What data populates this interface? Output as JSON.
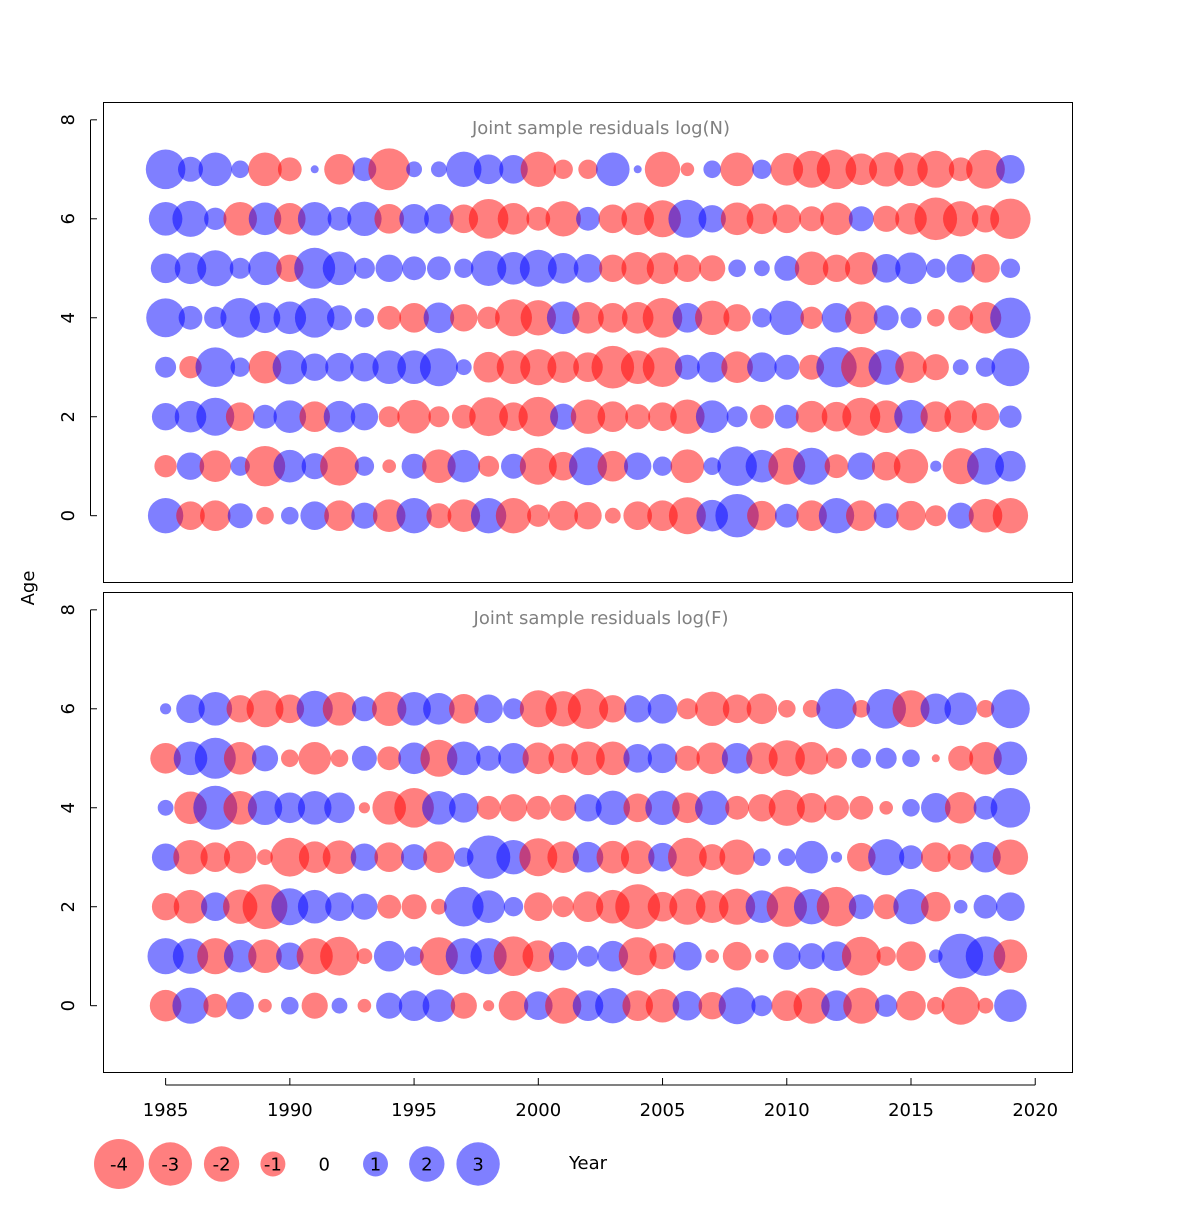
{
  "chart_data": [
    {
      "type": "bubble",
      "title": "Joint sample residuals log(N)",
      "xlabel": "",
      "ylabel": "Age",
      "xlim": [
        1982.5,
        2021.5
      ],
      "ylim": [
        -1.35,
        8.35
      ],
      "yticks": [
        0,
        2,
        4,
        6,
        8
      ],
      "x": [
        1985,
        1986,
        1987,
        1988,
        1989,
        1990,
        1991,
        1992,
        1993,
        1994,
        1995,
        1996,
        1997,
        1998,
        1999,
        2000,
        2001,
        2002,
        2003,
        2004,
        2005,
        2006,
        2007,
        2008,
        2009,
        2010,
        2011,
        2012,
        2013,
        2014,
        2015,
        2016,
        2017,
        2018,
        2019
      ],
      "ages": [
        0,
        1,
        2,
        3,
        4,
        5,
        6,
        7
      ],
      "residuals": [
        [
          2.0,
          -1.3,
          -1.5,
          1.0,
          -0.5,
          0.5,
          1.3,
          -1.5,
          1.1,
          -1.7,
          2.0,
          -1.0,
          -1.7,
          2.0,
          -2.0,
          -0.8,
          -1.4,
          -1.2,
          -0.4,
          -1.3,
          -1.5,
          -2.2,
          1.6,
          3.0,
          -1.4,
          0.9,
          -1.5,
          2.0,
          -1.5,
          1.0,
          -1.4,
          -0.7,
          1.1,
          -1.8,
          -2.0
        ],
        [
          -0.8,
          1.2,
          -1.6,
          0.6,
          -2.6,
          1.7,
          1.1,
          -2.4,
          0.6,
          -0.3,
          1.0,
          -1.8,
          1.7,
          -0.7,
          1.0,
          -2.2,
          -1.3,
          2.3,
          -1.5,
          1.2,
          0.6,
          -1.8,
          0.5,
          2.5,
          1.7,
          -2.2,
          2.2,
          -0.9,
          1.2,
          -1.3,
          -1.9,
          0.2,
          -2.1,
          2.2,
          1.5
        ],
        [
          1.2,
          1.6,
          2.3,
          -1.3,
          0.9,
          1.7,
          -1.5,
          1.6,
          1.2,
          -0.7,
          -1.8,
          -0.7,
          -0.9,
          -2.4,
          -1.3,
          -2.5,
          1.1,
          -1.9,
          -1.5,
          -1.0,
          -1.3,
          -1.9,
          1.7,
          0.7,
          -0.9,
          0.9,
          -1.6,
          -1.4,
          -2.3,
          -1.7,
          1.8,
          -1.5,
          -1.7,
          -1.2,
          0.8
        ],
        [
          0.7,
          -0.8,
          2.5,
          0.6,
          -1.7,
          1.9,
          1.2,
          1.3,
          1.3,
          1.8,
          1.8,
          2.3,
          0.4,
          -1.5,
          -1.8,
          -2.1,
          -1.6,
          -1.4,
          -2.9,
          -1.8,
          -2.5,
          1.0,
          1.5,
          -1.6,
          1.4,
          1.0,
          -1.0,
          2.6,
          -2.6,
          2.0,
          -1.6,
          -1.1,
          0.4,
          0.6,
          2.3
        ],
        [
          2.4,
          0.9,
          0.8,
          2.5,
          1.5,
          1.7,
          2.5,
          1.0,
          0.6,
          -0.9,
          -1.4,
          1.5,
          -1.2,
          -0.8,
          -2.2,
          -2.0,
          1.7,
          -1.6,
          -1.4,
          -1.6,
          -2.5,
          1.4,
          -1.9,
          -1.2,
          0.6,
          1.9,
          -0.8,
          1.4,
          -1.7,
          1.0,
          0.7,
          -0.5,
          -1.0,
          -1.6,
          2.6
        ],
        [
          1.4,
          1.6,
          2.1,
          0.7,
          1.8,
          -1.2,
          2.7,
          1.8,
          0.7,
          1.2,
          0.9,
          0.9,
          0.6,
          2.0,
          1.7,
          2.2,
          1.5,
          1.3,
          -1.2,
          -1.7,
          -1.6,
          -1.2,
          -1.1,
          0.5,
          0.4,
          1.0,
          -1.8,
          -1.2,
          -1.7,
          1.3,
          1.6,
          0.6,
          1.3,
          -1.3,
          0.6
        ],
        [
          1.8,
          2.1,
          0.8,
          -1.8,
          1.7,
          -1.6,
          1.8,
          0.9,
          1.9,
          -1.4,
          1.4,
          1.4,
          -1.3,
          -2.5,
          -1.6,
          -0.9,
          -2.0,
          0.9,
          -1.3,
          -1.7,
          -2.2,
          2.3,
          1.2,
          -1.7,
          -1.5,
          -1.3,
          -1.0,
          -1.7,
          1.0,
          -1.1,
          -1.6,
          -2.9,
          -2.0,
          -1.2,
          -2.6
        ],
        [
          2.5,
          1.0,
          1.8,
          0.5,
          -1.8,
          -0.9,
          0.1,
          -1.5,
          0.9,
          -2.8,
          0.4,
          0.4,
          2.0,
          1.4,
          1.3,
          -2.0,
          -0.6,
          -0.6,
          1.8,
          0.1,
          -2.0,
          -0.3,
          0.5,
          -1.8,
          0.6,
          -1.7,
          -2.2,
          -2.5,
          -1.6,
          -1.9,
          -1.8,
          -2.2,
          -0.9,
          -2.4,
          1.3
        ]
      ]
    },
    {
      "type": "bubble",
      "title": "Joint sample residuals log(F)",
      "xlabel": "Year",
      "ylabel": "Age",
      "xlim": [
        1982.5,
        2021.5
      ],
      "ylim": [
        -1.35,
        8.35
      ],
      "yticks": [
        0,
        2,
        4,
        6,
        8
      ],
      "xticks": [
        1985,
        1990,
        1995,
        2000,
        2005,
        2010,
        2015,
        2020
      ],
      "x": [
        1985,
        1986,
        1987,
        1988,
        1989,
        1990,
        1991,
        1992,
        1993,
        1994,
        1995,
        1996,
        1997,
        1998,
        1999,
        2000,
        2001,
        2002,
        2003,
        2004,
        2005,
        2006,
        2007,
        2008,
        2009,
        2010,
        2011,
        2012,
        2013,
        2014,
        2015,
        2016,
        2017,
        2018,
        2019
      ],
      "ages": [
        0,
        1,
        2,
        3,
        4,
        5,
        6
      ],
      "residuals": [
        [
          -1.6,
          2.1,
          -0.9,
          1.2,
          -0.3,
          0.5,
          -1.1,
          0.4,
          -0.3,
          1.1,
          1.5,
          1.7,
          -1.1,
          -0.2,
          -1.4,
          1.3,
          -2.1,
          1.5,
          2.0,
          -1.5,
          -1.8,
          1.4,
          -1.2,
          2.2,
          0.7,
          -1.5,
          -2.1,
          1.5,
          -2.1,
          0.8,
          -1.4,
          -0.5,
          -2.3,
          -0.4,
          1.7
        ],
        [
          2.1,
          2.0,
          -2.1,
          1.7,
          -1.8,
          1.2,
          -2.1,
          -2.4,
          -0.4,
          1.5,
          0.6,
          -2.3,
          2.1,
          2.1,
          -2.5,
          -1.6,
          1.3,
          0.7,
          1.5,
          -2.3,
          -1.1,
          1.3,
          -0.3,
          -1.3,
          -0.3,
          1.2,
          1.1,
          1.4,
          -2.4,
          -0.6,
          -1.4,
          0.3,
          3.2,
          2.5,
          -1.8
        ],
        [
          -1.2,
          -1.8,
          1.3,
          -1.9,
          -3.2,
          2.2,
          1.8,
          1.3,
          1.1,
          -0.9,
          -1.0,
          -0.4,
          2.5,
          1.7,
          0.6,
          -1.3,
          -0.7,
          -1.5,
          -1.8,
          -3.2,
          -1.4,
          -2.1,
          -1.7,
          -2.1,
          1.7,
          -2.6,
          2.0,
          -2.5,
          1.0,
          -1.0,
          2.0,
          -1.4,
          0.3,
          0.9,
          1.3
        ],
        [
          1.2,
          -1.9,
          -1.4,
          -1.7,
          -0.4,
          -2.4,
          -1.6,
          -1.8,
          1.2,
          -1.4,
          1.1,
          -1.6,
          0.6,
          3.0,
          1.9,
          -2.3,
          -1.6,
          1.5,
          -1.7,
          -1.8,
          1.3,
          -2.4,
          -1.1,
          -2.0,
          0.5,
          0.5,
          1.7,
          0.2,
          -1.3,
          2.1,
          0.9,
          -1.4,
          -1.1,
          1.5,
          -2.0
        ],
        [
          0.4,
          -1.7,
          3.1,
          -1.8,
          1.9,
          1.5,
          1.8,
          1.5,
          -0.2,
          -1.8,
          -2.5,
          1.8,
          1.4,
          -0.9,
          -1.2,
          -0.9,
          -1.1,
          1.2,
          1.9,
          -1.3,
          1.9,
          -1.5,
          1.9,
          -0.9,
          -1.2,
          -2.1,
          -1.4,
          -1.0,
          -0.9,
          -0.3,
          0.5,
          1.4,
          -1.6,
          0.9,
          2.5
        ],
        [
          -1.5,
          1.8,
          2.7,
          -1.7,
          1.1,
          -0.5,
          -1.7,
          -0.5,
          1.0,
          -0.9,
          1.6,
          -2.2,
          1.8,
          1.0,
          1.5,
          -1.6,
          -1.4,
          -1.8,
          -1.8,
          1.3,
          1.4,
          -1.0,
          -1.6,
          1.5,
          -1.6,
          -2.1,
          -1.7,
          -0.7,
          0.6,
          0.7,
          0.5,
          -0.1,
          -1.0,
          -1.7,
          1.8
        ],
        [
          0.2,
          1.3,
          1.8,
          -1.2,
          -2.2,
          -1.3,
          2.1,
          -1.8,
          1.0,
          -1.9,
          1.8,
          1.6,
          -1.4,
          1.3,
          0.7,
          -2.2,
          -2.0,
          -2.6,
          -1.2,
          1.2,
          1.4,
          -0.7,
          -1.9,
          -1.3,
          -1.5,
          -0.5,
          -0.5,
          2.6,
          -0.5,
          2.5,
          -2.2,
          1.5,
          1.7,
          -0.5,
          2.4
        ]
      ]
    }
  ],
  "legend": {
    "items": [
      {
        "label": "-4",
        "value": -4
      },
      {
        "label": "-3",
        "value": -3
      },
      {
        "label": "-2",
        "value": -2
      },
      {
        "label": "-1",
        "value": -1
      },
      {
        "label": "0",
        "value": 0
      },
      {
        "label": "1",
        "value": 1
      },
      {
        "label": "2",
        "value": 2
      },
      {
        "label": "3",
        "value": 3
      }
    ]
  },
  "colors": {
    "negative": "#ff0000",
    "positive": "#0000ff",
    "bubble_opacity": 0.5,
    "title_text": "#808080",
    "axis": "#000000"
  }
}
